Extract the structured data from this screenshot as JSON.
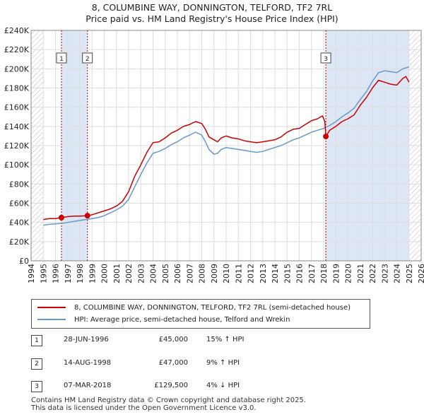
{
  "title_line1": "8, COLUMBINE WAY, DONNINGTON, TELFORD, TF2 7RL",
  "title_line2": "Price paid vs. HM Land Registry's House Price Index (HPI)",
  "colors": {
    "property": "#cc0000",
    "hpi": "#6699cc",
    "sale_marker": "#cc0000",
    "shade": "#dde6f4",
    "hatch": "#bbbbbb",
    "grid": "#dddddd"
  },
  "chart_data": {
    "type": "line",
    "xlim": [
      1994,
      2026
    ],
    "ylim": [
      0,
      240000
    ],
    "xticks": [
      1994,
      1995,
      1996,
      1997,
      1998,
      1999,
      2000,
      2001,
      2002,
      2003,
      2004,
      2005,
      2006,
      2007,
      2008,
      2009,
      2010,
      2011,
      2012,
      2013,
      2014,
      2015,
      2016,
      2017,
      2018,
      2019,
      2020,
      2021,
      2022,
      2023,
      2024,
      2025,
      2026
    ],
    "ytick_values": [
      0,
      20000,
      40000,
      60000,
      80000,
      100000,
      120000,
      140000,
      160000,
      180000,
      200000,
      220000,
      240000
    ],
    "ytick_labels": [
      "£0",
      "£20K",
      "£40K",
      "£60K",
      "£80K",
      "£100K",
      "£120K",
      "£140K",
      "£160K",
      "£180K",
      "£200K",
      "£220K",
      "£240K"
    ],
    "data_start": 1995.0,
    "data_end": 2025.0,
    "series": [
      {
        "name": "8, COLUMBINE WAY, DONNINGTON, TELFORD, TF2 7RL (semi-detached house)",
        "color": "#cc0000",
        "x": [
          1995.0,
          1995.5,
          1996.0,
          1996.49,
          1997.0,
          1997.5,
          1998.0,
          1998.62,
          1999.0,
          1999.5,
          2000.0,
          2000.5,
          2001.0,
          2001.5,
          2002.0,
          2002.5,
          2003.0,
          2003.5,
          2004.0,
          2004.5,
          2005.0,
          2005.5,
          2006.0,
          2006.5,
          2007.0,
          2007.5,
          2008.0,
          2008.3,
          2008.6,
          2009.0,
          2009.3,
          2009.6,
          2010.0,
          2010.5,
          2011.0,
          2011.5,
          2012.0,
          2012.5,
          2013.0,
          2013.5,
          2014.0,
          2014.5,
          2015.0,
          2015.5,
          2016.0,
          2016.5,
          2017.0,
          2017.5,
          2017.9,
          2018.1,
          2018.18,
          2018.5,
          2019.0,
          2019.5,
          2020.0,
          2020.5,
          2021.0,
          2021.5,
          2022.0,
          2022.5,
          2023.0,
          2023.5,
          2024.0,
          2024.5,
          2024.75,
          2025.0
        ],
        "values": [
          43000,
          44000,
          44000,
          45000,
          46000,
          46500,
          46500,
          47000,
          48000,
          50000,
          52000,
          54000,
          57000,
          62000,
          72000,
          88000,
          100000,
          113000,
          123000,
          124000,
          128000,
          133000,
          136000,
          140000,
          142000,
          145000,
          143000,
          137000,
          129000,
          126000,
          124000,
          128000,
          130000,
          128000,
          127000,
          125000,
          124000,
          123000,
          124000,
          125000,
          126000,
          129000,
          134000,
          137000,
          138000,
          142000,
          146000,
          148000,
          151000,
          145000,
          129500,
          136000,
          140000,
          145000,
          148000,
          152000,
          162000,
          170000,
          180000,
          188000,
          186000,
          184000,
          183000,
          190000,
          192000,
          186000
        ]
      },
      {
        "name": "HPI: Average price, semi-detached house, Telford and Wrekin",
        "color": "#6699cc",
        "x": [
          1995.0,
          1995.5,
          1996.0,
          1996.5,
          1997.0,
          1997.5,
          1998.0,
          1998.5,
          1999.0,
          1999.5,
          2000.0,
          2000.5,
          2001.0,
          2001.5,
          2002.0,
          2002.5,
          2003.0,
          2003.5,
          2004.0,
          2004.5,
          2005.0,
          2005.5,
          2006.0,
          2006.5,
          2007.0,
          2007.5,
          2008.0,
          2008.3,
          2008.6,
          2009.0,
          2009.3,
          2009.6,
          2010.0,
          2010.5,
          2011.0,
          2011.5,
          2012.0,
          2012.5,
          2013.0,
          2013.5,
          2014.0,
          2014.5,
          2015.0,
          2015.5,
          2016.0,
          2016.5,
          2017.0,
          2017.5,
          2018.0,
          2018.5,
          2019.0,
          2019.5,
          2020.0,
          2020.5,
          2021.0,
          2021.5,
          2022.0,
          2022.5,
          2023.0,
          2023.5,
          2024.0,
          2024.5,
          2025.0
        ],
        "values": [
          37000,
          38000,
          38500,
          39000,
          40000,
          41000,
          42000,
          43000,
          44000,
          45000,
          47000,
          50000,
          53000,
          57000,
          64000,
          77000,
          90000,
          102000,
          112000,
          114000,
          117000,
          121000,
          124000,
          128000,
          131000,
          134000,
          131000,
          124000,
          116000,
          111000,
          112000,
          116000,
          118000,
          117000,
          116000,
          115000,
          114000,
          113000,
          114000,
          116000,
          118000,
          120000,
          123000,
          126000,
          128000,
          131000,
          134000,
          136000,
          138000,
          141000,
          145000,
          150000,
          154000,
          159000,
          168000,
          176000,
          187000,
          196000,
          198000,
          197000,
          196000,
          200000,
          202000
        ]
      }
    ],
    "sales": [
      {
        "label": "1",
        "x": 1996.49,
        "value": 45000
      },
      {
        "label": "2",
        "x": 1998.62,
        "value": 47000
      },
      {
        "label": "3",
        "x": 2018.18,
        "value": 129500
      }
    ]
  },
  "legend": {
    "property_label": "8, COLUMBINE WAY, DONNINGTON, TELFORD, TF2 7RL (semi-detached house)",
    "hpi_label": "HPI: Average price, semi-detached house, Telford and Wrekin"
  },
  "transactions": [
    {
      "num": "1",
      "date": "28-JUN-1996",
      "price": "£45,000",
      "hpi": "15% ↑ HPI"
    },
    {
      "num": "2",
      "date": "14-AUG-1998",
      "price": "£47,000",
      "hpi": "9% ↑ HPI"
    },
    {
      "num": "3",
      "date": "07-MAR-2018",
      "price": "£129,500",
      "hpi": "4% ↓ HPI"
    }
  ],
  "footer": {
    "line1": "Contains HM Land Registry data © Crown copyright and database right 2025.",
    "line2": "This data is licensed under the Open Government Licence v3.0."
  }
}
